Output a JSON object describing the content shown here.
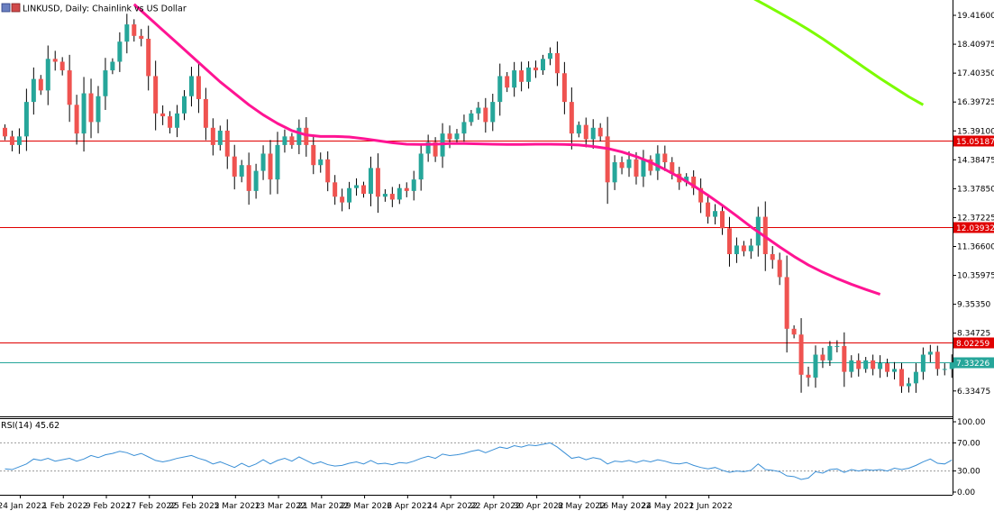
{
  "title": "LINKUSD, Daily:  Chainlink vs US Dollar",
  "rsi_label": "RSI(14) 45.62",
  "colors": {
    "bull": "#26a69a",
    "bear": "#ef5350",
    "ma_fast": "#ff1493",
    "ma_slow": "#7cfc00",
    "level_line": "#e00000",
    "price_line": "#26a69a",
    "rsi_line": "#3a8fd6"
  },
  "chart_data": {
    "type": "candlestick",
    "price_ticks": [
      "19.41600",
      "18.40975",
      "17.40350",
      "16.39725",
      "15.39100",
      "14.38475",
      "13.37850",
      "12.37225",
      "11.36600",
      "10.35975",
      "9.35350",
      "8.34725",
      "6.33475"
    ],
    "price_ticks_values": [
      19.416,
      18.40975,
      17.4035,
      16.39725,
      15.391,
      14.38475,
      13.3785,
      12.37225,
      11.366,
      10.35975,
      9.3535,
      8.34725,
      6.33475
    ],
    "ylim": [
      5.45,
      19.95
    ],
    "x_labels": [
      "24 Jan 2022",
      "1 Feb 2022",
      "9 Feb 2022",
      "17 Feb 2022",
      "25 Feb 2022",
      "5 Mar 2022",
      "13 Mar 2022",
      "21 Mar 2022",
      "29 Mar 2022",
      "6 Apr 2022",
      "14 Apr 2022",
      "22 Apr 2022",
      "30 Apr 2022",
      "8 May 2022",
      "16 May 2022",
      "24 May 2022",
      "1 Jun 2022"
    ],
    "levels": [
      {
        "label": "15.05187",
        "value": 15.05187
      },
      {
        "label": "12.03932",
        "value": 12.03932
      },
      {
        "label": "8.02259",
        "value": 8.02259
      }
    ],
    "current_price": {
      "label": "7.33226",
      "value": 7.33226
    },
    "closes": [
      15.2,
      14.9,
      15.2,
      16.4,
      17.2,
      16.8,
      17.9,
      17.8,
      17.5,
      16.3,
      15.3,
      16.7,
      15.7,
      16.6,
      17.5,
      17.8,
      18.5,
      19.1,
      18.7,
      18.6,
      17.3,
      16.0,
      15.9,
      15.5,
      16.0,
      16.6,
      17.3,
      16.5,
      15.5,
      14.9,
      15.4,
      14.5,
      13.8,
      14.2,
      13.3,
      14.0,
      14.6,
      13.7,
      14.9,
      15.2,
      14.9,
      15.5,
      14.9,
      14.2,
      14.4,
      13.6,
      13.1,
      12.9,
      13.4,
      13.5,
      13.2,
      14.1,
      13.1,
      13.2,
      13.0,
      13.4,
      13.3,
      13.7,
      14.6,
      15.0,
      14.5,
      15.3,
      15.1,
      15.3,
      15.7,
      16.0,
      16.2,
      15.7,
      16.4,
      17.3,
      16.9,
      17.5,
      17.1,
      17.6,
      17.5,
      17.9,
      18.1,
      17.4,
      16.4,
      15.3,
      15.6,
      15.1,
      15.5,
      15.2,
      13.6,
      14.3,
      14.1,
      14.4,
      13.8,
      14.4,
      14.0,
      14.6,
      14.3,
      13.9,
      13.6,
      13.8,
      13.4,
      12.9,
      12.4,
      12.6,
      12.0,
      11.1,
      11.4,
      11.2,
      11.4,
      12.4,
      11.1,
      10.9,
      10.3,
      8.5,
      8.3,
      6.9,
      6.8,
      7.6,
      7.4,
      7.9,
      7.9,
      7.0,
      7.4,
      7.1,
      7.4,
      7.1,
      7.3,
      7.0,
      7.1,
      6.5,
      6.6,
      7.0,
      7.6,
      7.7,
      7.1,
      7.1,
      7.33
    ],
    "ma_fast": {
      "from": 18,
      "values": [
        19.8,
        19.35,
        18.9,
        18.45,
        18.0,
        17.55,
        17.1,
        16.7,
        16.3,
        15.95,
        15.65,
        15.4,
        15.25,
        15.2,
        15.2,
        15.18,
        15.12,
        15.05,
        14.98,
        14.93,
        14.92,
        14.93,
        14.95,
        14.95,
        14.94,
        14.93,
        14.92,
        14.92,
        14.93,
        14.93,
        14.92,
        14.9,
        14.85,
        14.78,
        14.66,
        14.5,
        14.3,
        14.05,
        13.78,
        13.48,
        13.15,
        12.8,
        12.43,
        12.05,
        11.7,
        11.35,
        11.02,
        10.72,
        10.47,
        10.25,
        10.05,
        9.87,
        9.7
      ]
    },
    "ma_slow": {
      "from": 104,
      "values": [
        20.05,
        19.78,
        19.5,
        19.22,
        18.92,
        18.6,
        18.26,
        17.91,
        17.56,
        17.22,
        16.9,
        16.58,
        16.3
      ]
    },
    "rsi": {
      "ticks": [
        "100.00",
        "70.00",
        "30.00",
        "0.00"
      ],
      "ticks_values": [
        100,
        70,
        30,
        0
      ],
      "levels": [
        70,
        30
      ],
      "values": [
        33,
        32,
        36,
        40,
        47,
        45,
        48,
        44,
        46,
        48,
        44,
        47,
        52,
        49,
        53,
        55,
        58,
        56,
        52,
        55,
        50,
        45,
        43,
        45,
        48,
        50,
        52,
        48,
        45,
        40,
        43,
        39,
        35,
        41,
        36,
        40,
        46,
        40,
        45,
        48,
        44,
        50,
        45,
        40,
        43,
        39,
        37,
        38,
        41,
        43,
        40,
        45,
        40,
        41,
        39,
        42,
        41,
        44,
        48,
        51,
        48,
        54,
        52,
        53,
        55,
        58,
        60,
        56,
        60,
        64,
        62,
        66,
        64,
        67,
        66,
        68,
        70,
        64,
        56,
        48,
        50,
        46,
        49,
        47,
        40,
        44,
        43,
        45,
        42,
        45,
        43,
        46,
        44,
        41,
        40,
        42,
        38,
        35,
        33,
        35,
        31,
        28,
        30,
        29,
        31,
        40,
        32,
        31,
        29,
        23,
        22,
        18,
        20,
        29,
        27,
        32,
        33,
        28,
        32,
        30,
        32,
        31,
        32,
        30,
        34,
        32,
        34,
        38,
        43,
        47,
        41,
        40,
        45.62
      ]
    }
  }
}
